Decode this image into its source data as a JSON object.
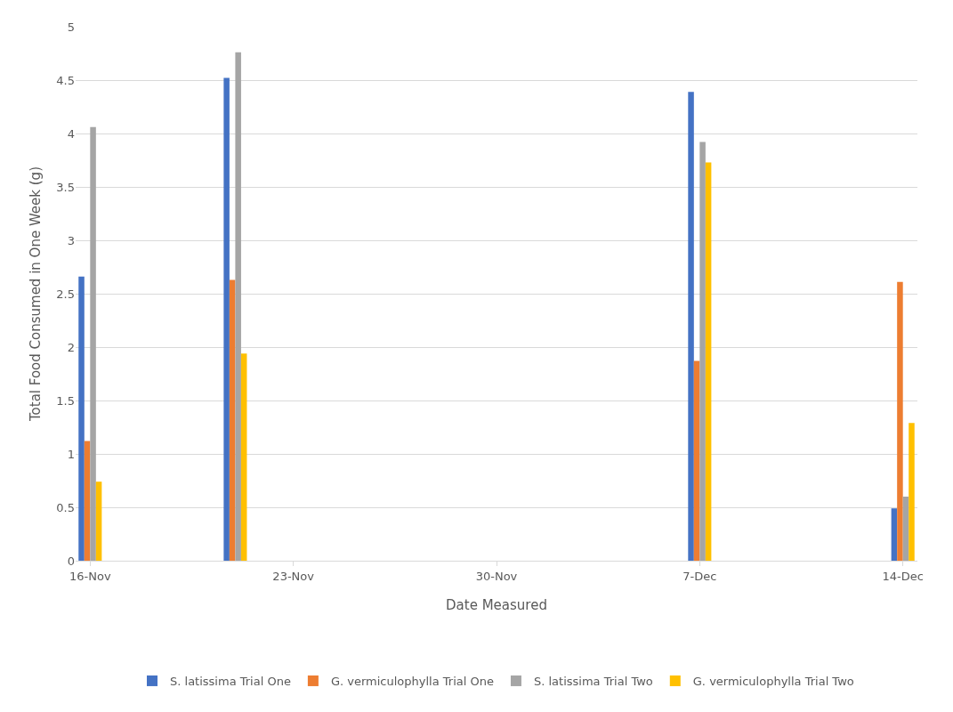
{
  "chart_data": {
    "type": "bar",
    "xlabel": "Date Measured",
    "ylabel": "Total Food Consumed in One Week (g)",
    "x": [
      "--11-16",
      "--11-21",
      "--12-07",
      "--12-14"
    ],
    "series": [
      {
        "name": "S. latissima Trial One",
        "color": "#4472c4",
        "values": [
          2.66,
          4.52,
          4.39,
          0.49
        ]
      },
      {
        "name": "G. vermiculophylla Trial One",
        "color": "#ed7d31",
        "values": [
          1.12,
          2.63,
          1.87,
          2.61
        ]
      },
      {
        "name": "S. latissima Trial Two",
        "color": "#a5a5a5",
        "values": [
          4.06,
          4.76,
          3.92,
          0.6
        ]
      },
      {
        "name": "G. vermiculophylla Trial Two",
        "color": "#ffc000",
        "values": [
          0.74,
          1.94,
          3.73,
          1.29
        ]
      }
    ],
    "xlim": [
      "--11-15T12:00",
      "--12-14T12:00"
    ],
    "xticks": [
      {
        "value": "--11-16",
        "label": "16-Nov"
      },
      {
        "value": "--11-23",
        "label": "23-Nov"
      },
      {
        "value": "--11-30",
        "label": "30-Nov"
      },
      {
        "value": "--12-07",
        "label": "7-Dec"
      },
      {
        "value": "--12-14",
        "label": "14-Dec"
      }
    ],
    "ylim": [
      0,
      5
    ],
    "yticks": [
      0,
      0.5,
      1,
      1.5,
      2,
      2.5,
      3,
      3.5,
      4,
      4.5,
      5
    ],
    "grid": "y",
    "legend": "bottom"
  }
}
